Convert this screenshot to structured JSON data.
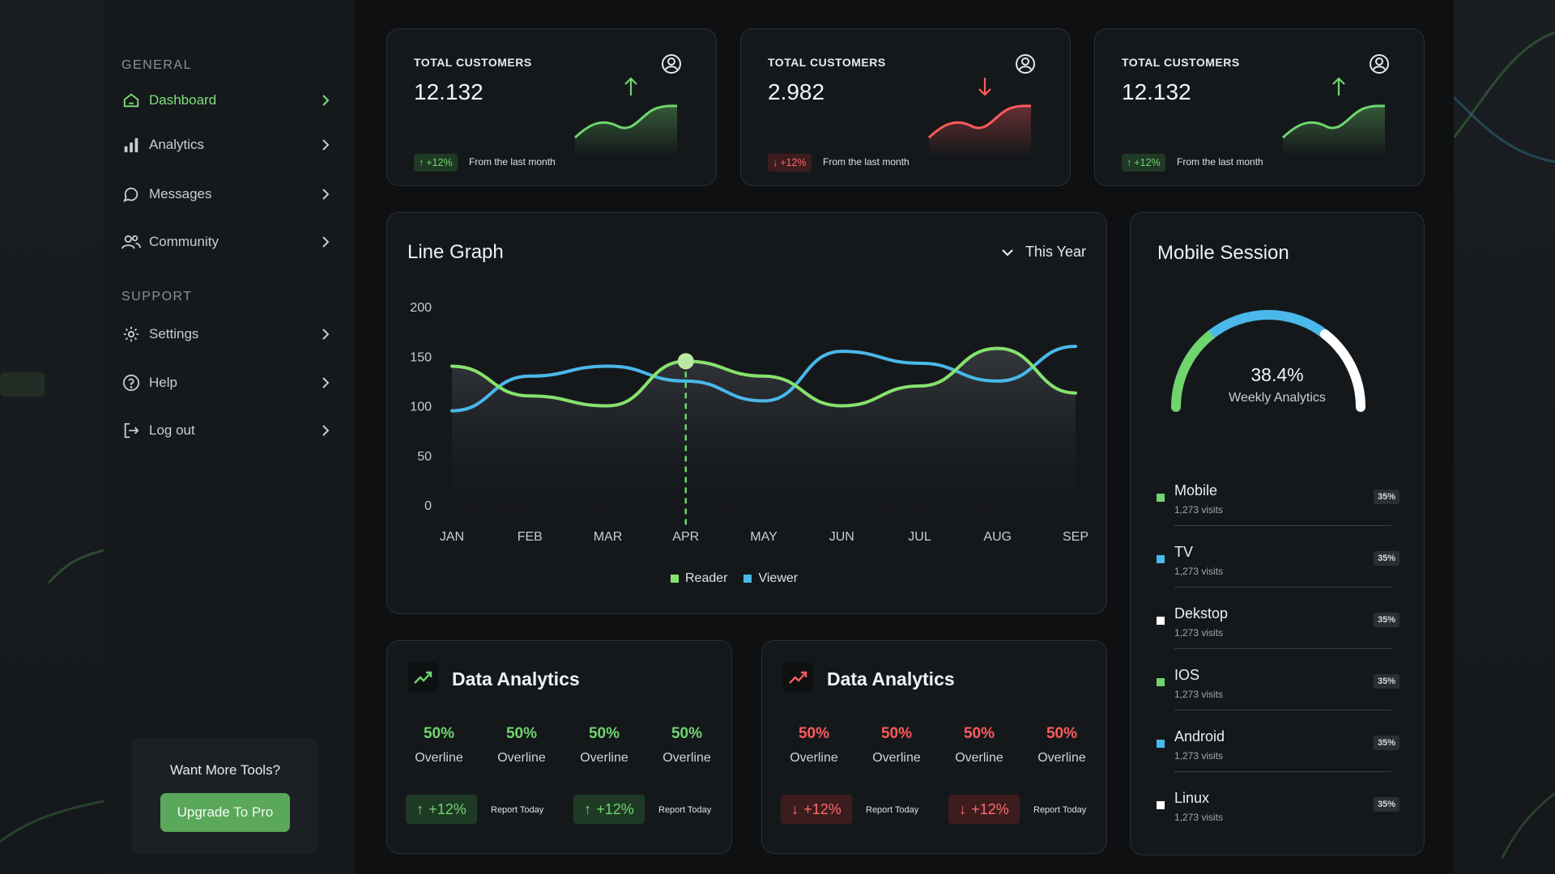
{
  "colors": {
    "accent_green": "#6fd56f",
    "accent_red": "#ff5b5b",
    "viewer_blue": "#4ab8ea",
    "reader_green": "#86e26d",
    "button_green": "#5aa85a"
  },
  "sidebar": {
    "general_label": "GENERAL",
    "support_label": "SUPPORT",
    "general_items": [
      {
        "label": "Dashboard",
        "icon": "home-icon",
        "active": true
      },
      {
        "label": "Analytics",
        "icon": "bar-chart-icon"
      },
      {
        "label": "Messages",
        "icon": "chat-icon"
      },
      {
        "label": "Community",
        "icon": "users-icon"
      }
    ],
    "support_items": [
      {
        "label": "Settings",
        "icon": "gear-icon"
      },
      {
        "label": "Help",
        "icon": "help-icon"
      },
      {
        "label": "Log out",
        "icon": "logout-icon"
      }
    ],
    "promo": {
      "question": "Want More Tools?",
      "button": "Upgrade To Pro"
    }
  },
  "stats": [
    {
      "title": "TOTAL CUSTOMERS",
      "value": "12.132",
      "trend": "up",
      "change": "+12%",
      "note": "From the last month"
    },
    {
      "title": "TOTAL CUSTOMERS",
      "value": "2.982",
      "trend": "down",
      "change": "+12%",
      "note": "From the last month"
    },
    {
      "title": "TOTAL CUSTOMERS",
      "value": "12.132",
      "trend": "up",
      "change": "+12%",
      "note": "From the last month"
    }
  ],
  "line_graph": {
    "title": "Line Graph",
    "filter": "This Year",
    "legend": [
      "Reader",
      "Viewer"
    ]
  },
  "chart_data": {
    "type": "line",
    "title": "Line Graph",
    "x": [
      "JAN",
      "FEB",
      "MAR",
      "APR",
      "MAY",
      "JUN",
      "JUL",
      "AUG",
      "SEP"
    ],
    "y_ticks": [
      200,
      150,
      100,
      50,
      0
    ],
    "ylim": [
      0,
      200
    ],
    "series": [
      {
        "name": "Reader",
        "values": [
          140,
          110,
          100,
          145,
          130,
          100,
          120,
          158,
          113
        ]
      },
      {
        "name": "Viewer",
        "values": [
          95,
          130,
          140,
          125,
          105,
          155,
          143,
          125,
          160
        ]
      }
    ],
    "highlight": "APR",
    "legend": "bottom"
  },
  "mobile_session": {
    "title": "Mobile Session",
    "gauge_value": "38.4%",
    "gauge_label": "Weekly Analytics",
    "devices": [
      {
        "name": "Mobile",
        "visits": "1,273 visits",
        "pct": "35%",
        "color": "#6fd56f"
      },
      {
        "name": "TV",
        "visits": "1,273 visits",
        "pct": "35%",
        "color": "#4ab8ea"
      },
      {
        "name": "Dekstop",
        "visits": "1,273 visits",
        "pct": "35%",
        "color": "#ffffff"
      },
      {
        "name": "IOS",
        "visits": "1,273 visits",
        "pct": "35%",
        "color": "#6fd56f"
      },
      {
        "name": "Android",
        "visits": "1,273 visits",
        "pct": "35%",
        "color": "#4ab8ea"
      },
      {
        "name": "Linux",
        "visits": "1,273 visits",
        "pct": "35%",
        "color": "#ffffff"
      }
    ]
  },
  "data_analytics": [
    {
      "title": "Data Analytics",
      "trend": "up",
      "metrics": [
        {
          "value": "50%",
          "label": "Overline"
        },
        {
          "value": "50%",
          "label": "Overline"
        },
        {
          "value": "50%",
          "label": "Overline"
        },
        {
          "value": "50%",
          "label": "Overline"
        }
      ],
      "pills": [
        {
          "change": "+12%",
          "note": "Report Today"
        },
        {
          "change": "+12%",
          "note": "Report Today"
        }
      ]
    },
    {
      "title": "Data Analytics",
      "trend": "down",
      "metrics": [
        {
          "value": "50%",
          "label": "Overline"
        },
        {
          "value": "50%",
          "label": "Overline"
        },
        {
          "value": "50%",
          "label": "Overline"
        },
        {
          "value": "50%",
          "label": "Overline"
        }
      ],
      "pills": [
        {
          "change": "+12%",
          "note": "Report Today"
        },
        {
          "change": "+12%",
          "note": "Report Today"
        }
      ]
    }
  ]
}
